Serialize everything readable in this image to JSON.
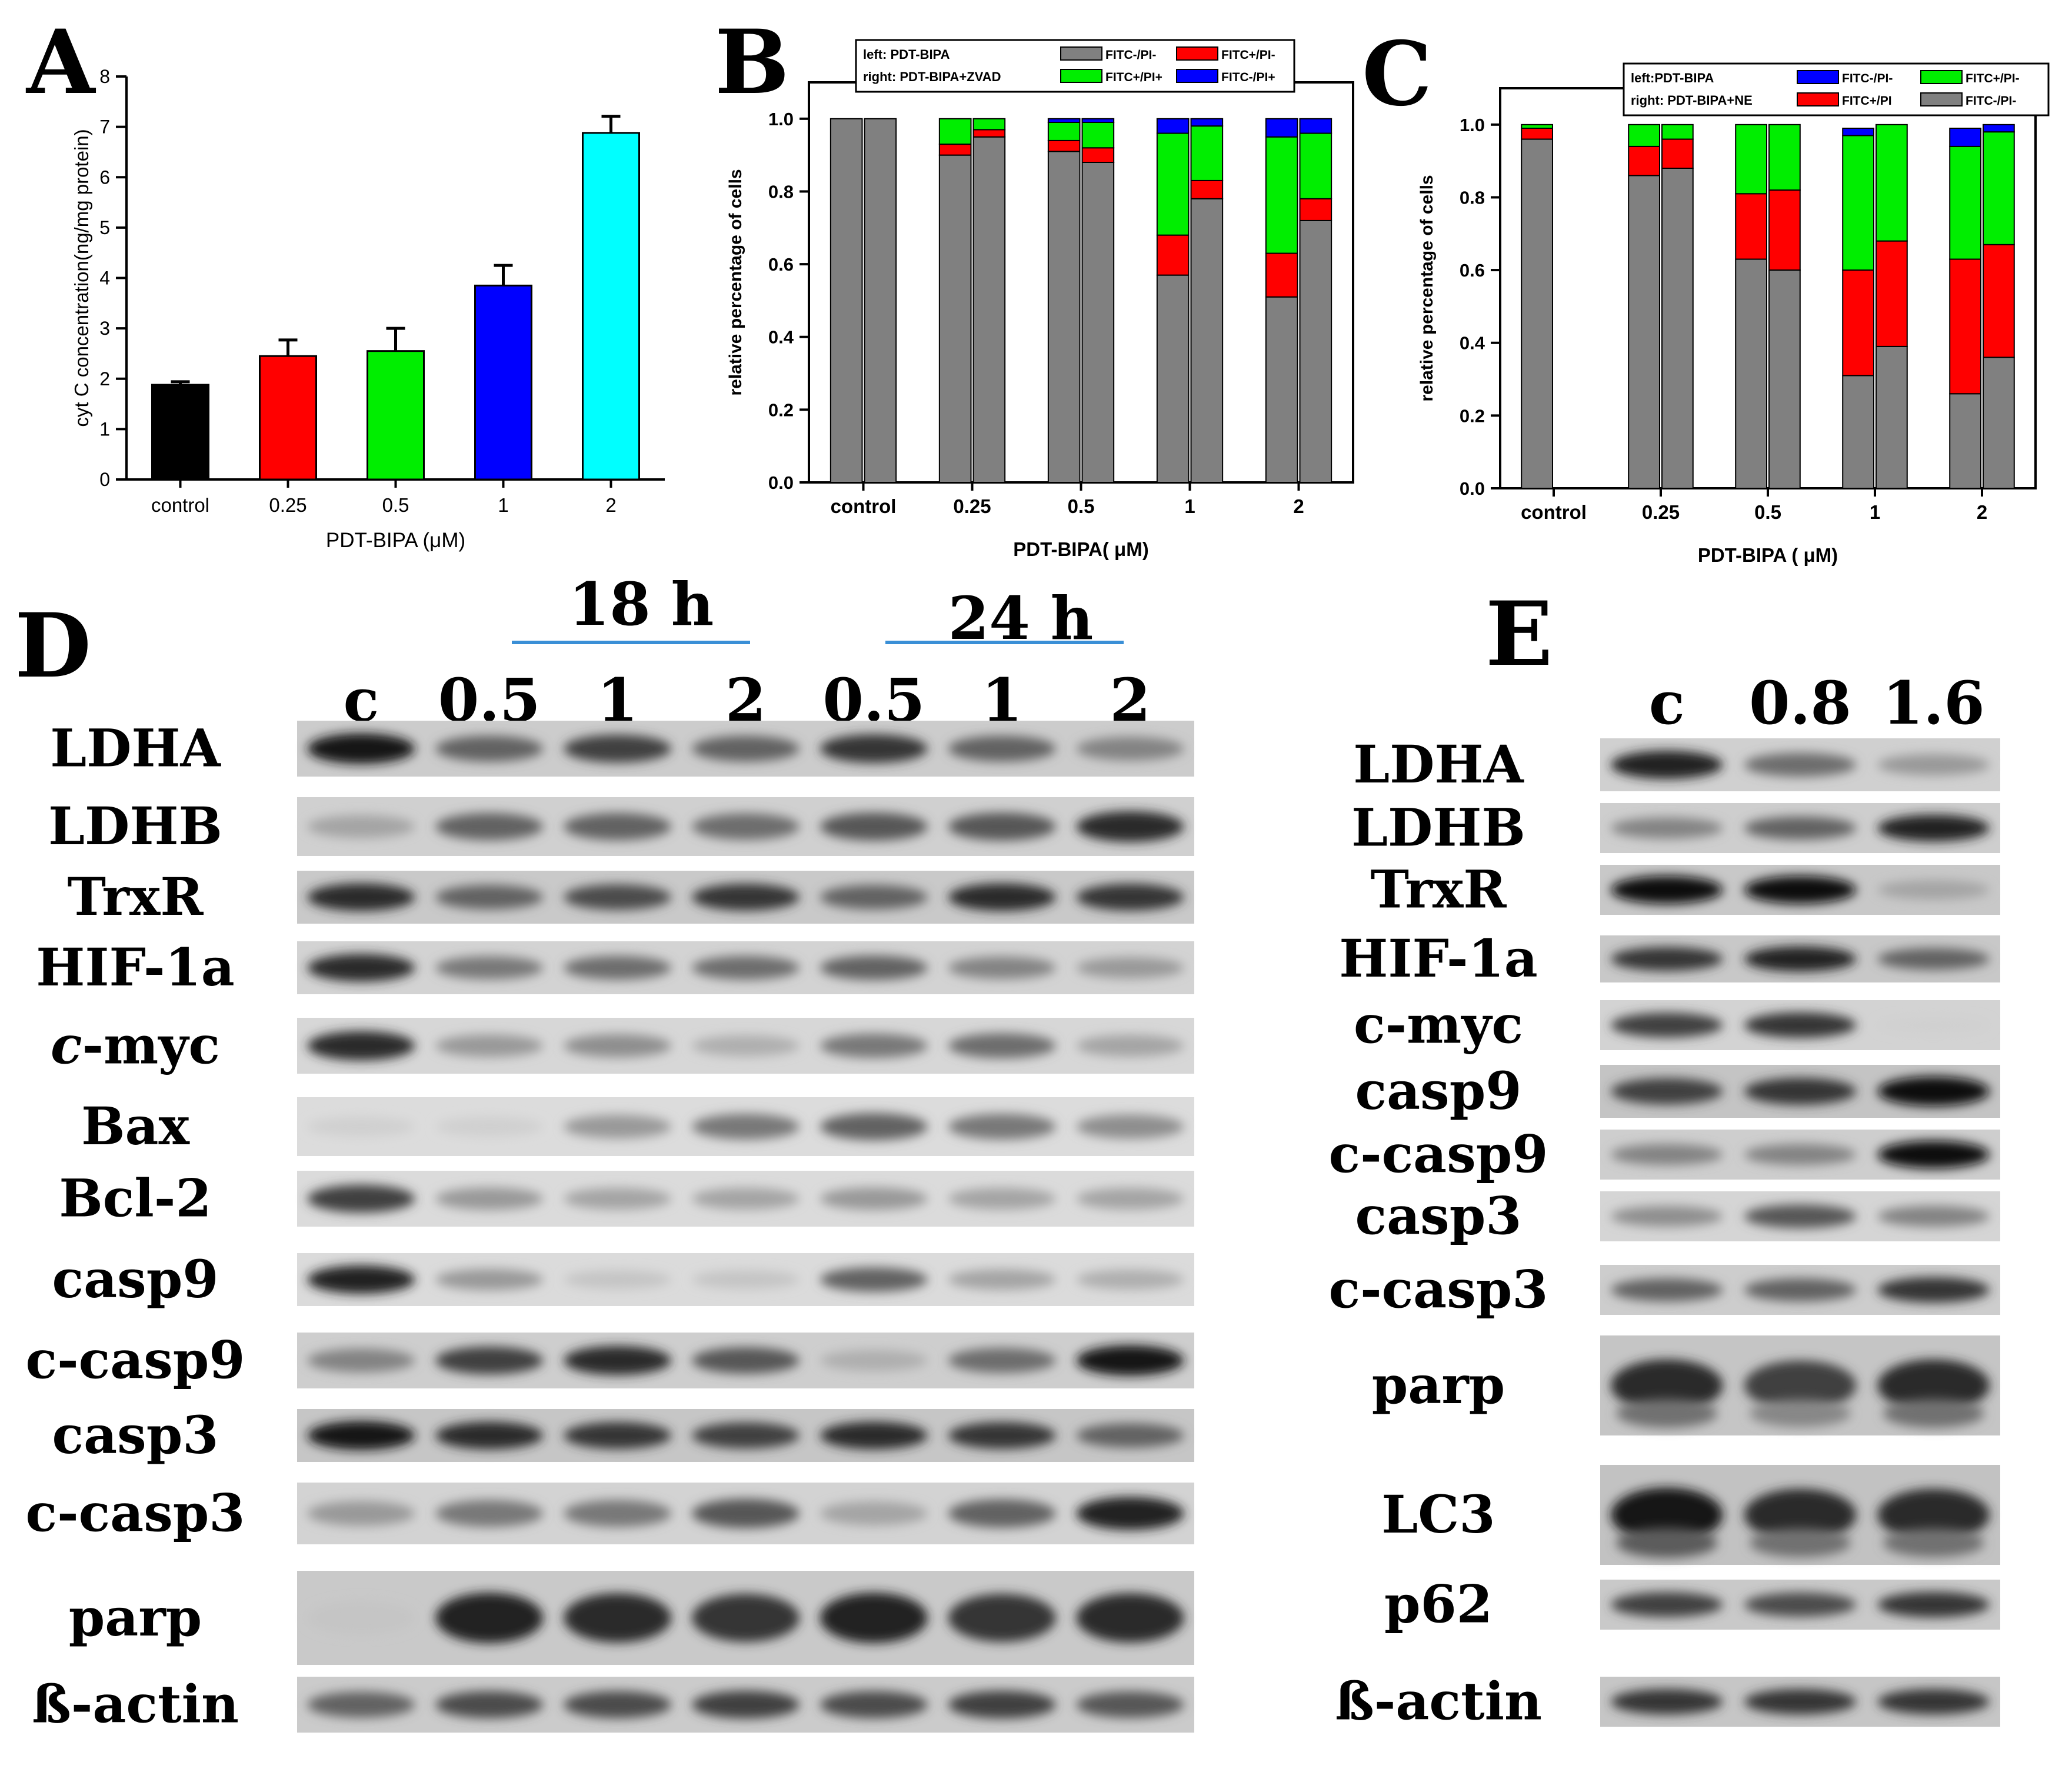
{
  "chart_data": [
    {
      "panel": "A",
      "type": "bar",
      "categories": [
        "control",
        "0.25",
        "0.5",
        "1",
        "2"
      ],
      "values": [
        1.88,
        2.45,
        2.55,
        3.85,
        6.88
      ],
      "errors": [
        0.06,
        0.32,
        0.45,
        0.4,
        0.33
      ],
      "colors": [
        "#000000",
        "#ff0000",
        "#00ee00",
        "#0000ff",
        "#00ffff"
      ],
      "xlabel": "PDT-BIPA (μM)",
      "ylabel": "cyt C concentration(ng/mg protein)",
      "ylim": [
        0,
        8
      ],
      "yticks": [
        "0",
        "1",
        "2",
        "3",
        "4",
        "5",
        "6",
        "7",
        "8"
      ],
      "grid": false
    },
    {
      "panel": "B",
      "type": "bar",
      "stacked": true,
      "categories": [
        "control",
        "0.25",
        "0.5",
        "1",
        "2"
      ],
      "xlabel": "PDT-BIPA( μM)",
      "ylabel": "relative percentage of cells",
      "ylim": [
        0,
        1.1
      ],
      "yticks": [
        "0.0",
        "0.2",
        "0.4",
        "0.6",
        "0.8",
        "1.0"
      ],
      "legend_position": "top",
      "legend": {
        "left_label": "left: PDT-BIPA",
        "right_label": "right: PDT-BIPA+ZVAD",
        "entries": [
          {
            "label": "FITC-/PI-",
            "color": "#808080"
          },
          {
            "label": "FITC+/PI-",
            "color": "#ff0000"
          },
          {
            "label": "FITC+/PI+",
            "color": "#00ee00"
          },
          {
            "label": "FITC-/PI+",
            "color": "#0000ff"
          }
        ]
      },
      "series": [
        {
          "name": "FITC-/PI-",
          "color": "#808080",
          "left": [
            1.0,
            0.9,
            0.91,
            0.57,
            0.51
          ],
          "right": [
            1.0,
            0.95,
            0.88,
            0.78,
            0.72
          ]
        },
        {
          "name": "FITC+/PI-",
          "color": "#ff0000",
          "left": [
            0.0,
            0.03,
            0.03,
            0.11,
            0.12
          ],
          "right": [
            0.0,
            0.02,
            0.04,
            0.05,
            0.06
          ]
        },
        {
          "name": "FITC+/PI+",
          "color": "#00ee00",
          "left": [
            0.0,
            0.07,
            0.05,
            0.28,
            0.32
          ],
          "right": [
            0.0,
            0.03,
            0.07,
            0.15,
            0.18
          ]
        },
        {
          "name": "FITC-/PI+",
          "color": "#0000ff",
          "left": [
            0.0,
            0.0,
            0.01,
            0.04,
            0.05
          ],
          "right": [
            0.0,
            0.0,
            0.01,
            0.02,
            0.04
          ]
        }
      ]
    },
    {
      "panel": "C",
      "type": "bar",
      "stacked": true,
      "categories": [
        "control",
        "0.25",
        "0.5",
        "1",
        "2"
      ],
      "xlabel": "PDT-BIPA ( μM)",
      "ylabel": "relative percentage of cells",
      "ylim": [
        0,
        1.1
      ],
      "yticks": [
        "0.0",
        "0.2",
        "0.4",
        "0.6",
        "0.8",
        "1.0"
      ],
      "legend_position": "top-right",
      "legend": {
        "left_label": "left:PDT-BIPA",
        "right_label": "right: PDT-BIPA+NE",
        "entries": [
          {
            "label": "FITC-/PI-",
            "color": "#0000ff"
          },
          {
            "label": "FITC+/PI-",
            "color": "#00ee00"
          },
          {
            "label": "FITC+/PI",
            "color": "#ff0000"
          },
          {
            "label": "FITC-/PI-",
            "color": "#808080"
          }
        ]
      },
      "series": [
        {
          "name": "FITC-/PI-",
          "color": "#808080",
          "left": [
            0.96,
            0.86,
            0.63,
            0.31,
            0.26
          ],
          "right": [
            null,
            0.88,
            0.6,
            0.39,
            0.36
          ]
        },
        {
          "name": "FITC+/PI",
          "color": "#ff0000",
          "left": [
            0.03,
            0.08,
            0.18,
            0.29,
            0.37
          ],
          "right": [
            null,
            0.08,
            0.22,
            0.29,
            0.31
          ]
        },
        {
          "name": "FITC+/PI-",
          "color": "#00ee00",
          "left": [
            0.01,
            0.06,
            0.19,
            0.37,
            0.31
          ],
          "right": [
            null,
            0.04,
            0.18,
            0.32,
            0.31
          ]
        },
        {
          "name": "FITC-/PI+",
          "color": "#0000ff",
          "left": [
            0.0,
            0.0,
            0.0,
            0.02,
            0.05
          ],
          "right": [
            null,
            0.0,
            0.0,
            0.0,
            0.02
          ]
        }
      ]
    }
  ],
  "panels": {
    "A": {
      "letter": "A"
    },
    "B": {
      "letter": "B"
    },
    "C": {
      "letter": "C"
    },
    "D": {
      "letter": "D",
      "group_labels": [
        "18 h",
        "24 h"
      ],
      "lane_labels": [
        "c",
        "0.5",
        "1",
        "2",
        "0.5",
        "1",
        "2"
      ],
      "rows": [
        {
          "label": "LDHA",
          "italic_prefix": "",
          "intensity": [
            0.95,
            0.6,
            0.75,
            0.6,
            0.8,
            0.6,
            0.45
          ]
        },
        {
          "label": "LDHB",
          "italic_prefix": "",
          "intensity": [
            0.3,
            0.6,
            0.6,
            0.55,
            0.65,
            0.65,
            0.85
          ]
        },
        {
          "label": "TrxR",
          "italic_prefix": "",
          "intensity": [
            0.85,
            0.6,
            0.7,
            0.8,
            0.6,
            0.85,
            0.8
          ]
        },
        {
          "label": "HIF-1a",
          "italic_prefix": "",
          "intensity": [
            0.85,
            0.5,
            0.55,
            0.55,
            0.6,
            0.45,
            0.35
          ]
        },
        {
          "label": "-myc",
          "italic_prefix": "c",
          "intensity": [
            0.85,
            0.35,
            0.4,
            0.25,
            0.5,
            0.55,
            0.3
          ]
        },
        {
          "label": "Bax",
          "italic_prefix": "",
          "intensity": [
            0.1,
            0.1,
            0.35,
            0.5,
            0.6,
            0.5,
            0.4
          ]
        },
        {
          "label": "Bcl-2",
          "italic_prefix": "",
          "intensity": [
            0.75,
            0.35,
            0.3,
            0.3,
            0.35,
            0.3,
            0.3
          ]
        },
        {
          "label": "casp9",
          "italic_prefix": "",
          "intensity": [
            0.9,
            0.35,
            0.15,
            0.15,
            0.6,
            0.3,
            0.25
          ]
        },
        {
          "label": "c-casp9",
          "italic_prefix": "",
          "intensity": [
            0.45,
            0.75,
            0.85,
            0.65,
            0.25,
            0.55,
            0.95
          ]
        },
        {
          "label": "casp3",
          "italic_prefix": "",
          "intensity": [
            0.95,
            0.85,
            0.8,
            0.75,
            0.85,
            0.8,
            0.6
          ]
        },
        {
          "label": "c-casp3",
          "italic_prefix": "",
          "intensity": [
            0.35,
            0.5,
            0.5,
            0.65,
            0.3,
            0.6,
            0.9
          ]
        },
        {
          "label": "parp",
          "italic_prefix": "",
          "intensity": [
            0.15,
            0.9,
            0.85,
            0.8,
            0.9,
            0.8,
            0.85
          ]
        },
        {
          "label": "ß-actin",
          "italic_prefix": "",
          "intensity": [
            0.6,
            0.7,
            0.7,
            0.75,
            0.7,
            0.75,
            0.65
          ]
        }
      ]
    },
    "E": {
      "letter": "E",
      "lane_labels": [
        "c",
        "0.8",
        "1.6"
      ],
      "rows": [
        {
          "label": "LDHA",
          "intensity": [
            0.9,
            0.55,
            0.35
          ]
        },
        {
          "label": "LDHB",
          "intensity": [
            0.45,
            0.6,
            0.9
          ]
        },
        {
          "label": "TrxR",
          "intensity": [
            1.0,
            1.0,
            0.3
          ]
        },
        {
          "label": "HIF-1a",
          "intensity": [
            0.8,
            0.9,
            0.6
          ]
        },
        {
          "label": "c-myc",
          "intensity": [
            0.75,
            0.8,
            0.1
          ]
        },
        {
          "label": "casp9",
          "intensity": [
            0.75,
            0.8,
            1.0
          ]
        },
        {
          "label": "c-casp9",
          "intensity": [
            0.45,
            0.45,
            1.0
          ]
        },
        {
          "label": "casp3",
          "intensity": [
            0.4,
            0.65,
            0.45
          ]
        },
        {
          "label": "c-casp3",
          "intensity": [
            0.6,
            0.6,
            0.8
          ]
        },
        {
          "label": "parp",
          "intensity": [
            0.85,
            0.75,
            0.85
          ]
        },
        {
          "label": "LC3",
          "intensity": [
            0.95,
            0.85,
            0.85
          ]
        },
        {
          "label": "p62",
          "intensity": [
            0.75,
            0.7,
            0.8
          ]
        },
        {
          "label": "ß-actin",
          "intensity": [
            0.8,
            0.8,
            0.8
          ]
        }
      ]
    }
  }
}
